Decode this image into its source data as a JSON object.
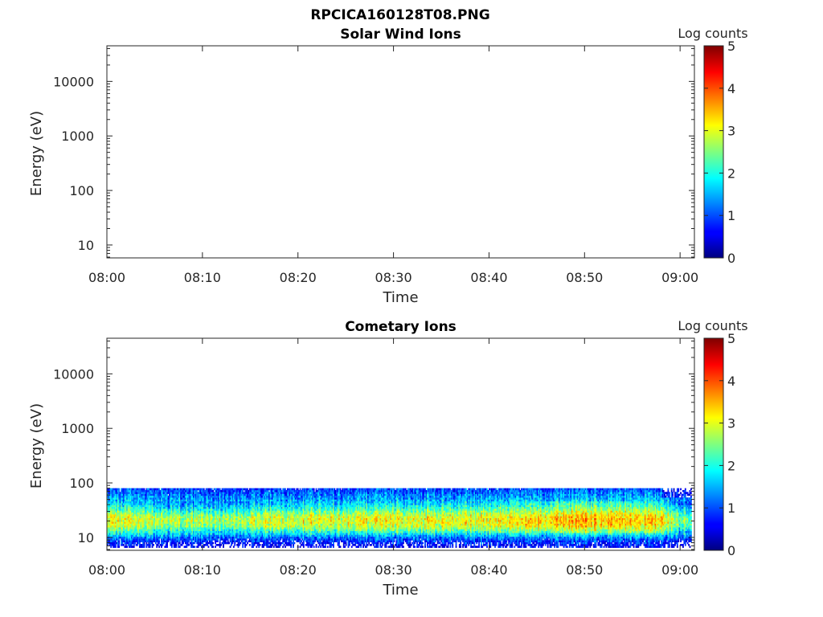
{
  "figure": {
    "title": "RPCICA160128T08.PNG"
  },
  "chart_data": [
    {
      "type": "heatmap",
      "title": "Solar Wind Ions",
      "xlabel": "Time",
      "ylabel": "Energy (eV)",
      "x_ticks": [
        "08:00",
        "08:10",
        "08:20",
        "08:30",
        "08:40",
        "08:50",
        "09:00"
      ],
      "xlim": [
        "08:00",
        "09:01:30"
      ],
      "y_scale": "log",
      "y_ticks": [
        10,
        100,
        1000,
        10000
      ],
      "y_tick_labels": [
        "10",
        "100",
        "1000",
        "10000"
      ],
      "ylim": [
        5.8,
        45000
      ],
      "colorbar": {
        "label": "Log counts",
        "ticks": [
          "0",
          "1",
          "2",
          "3",
          "4",
          "5"
        ],
        "range": [
          0,
          5
        ],
        "colormap": "jet"
      },
      "data": "empty"
    },
    {
      "type": "heatmap",
      "title": "Cometary Ions",
      "xlabel": "Time",
      "ylabel": "Energy (eV)",
      "x_ticks": [
        "08:00",
        "08:10",
        "08:20",
        "08:30",
        "08:40",
        "08:50",
        "09:00"
      ],
      "xlim": [
        "08:00",
        "09:01:30"
      ],
      "y_scale": "log",
      "y_ticks": [
        10,
        100,
        1000,
        10000
      ],
      "y_tick_labels": [
        "10",
        "100",
        "1000",
        "10000"
      ],
      "ylim": [
        5.8,
        45000
      ],
      "colorbar": {
        "label": "Log counts",
        "ticks": [
          "0",
          "1",
          "2",
          "3",
          "4",
          "5"
        ],
        "range": [
          0,
          5
        ],
        "colormap": "jet"
      },
      "energy_range_eV": [
        6.5,
        80
      ],
      "energy_profile": [
        {
          "energy_eV": 7,
          "log_counts": 0.4
        },
        {
          "energy_eV": 9,
          "log_counts": 0.9
        },
        {
          "energy_eV": 11,
          "log_counts": 1.6
        },
        {
          "energy_eV": 13,
          "log_counts": 2.2
        },
        {
          "energy_eV": 16,
          "log_counts": 2.8
        },
        {
          "energy_eV": 19,
          "log_counts": 3.0
        },
        {
          "energy_eV": 23,
          "log_counts": 3.0
        },
        {
          "energy_eV": 28,
          "log_counts": 2.6
        },
        {
          "energy_eV": 34,
          "log_counts": 2.1
        },
        {
          "energy_eV": 42,
          "log_counts": 1.7
        },
        {
          "energy_eV": 52,
          "log_counts": 1.4
        },
        {
          "energy_eV": 64,
          "log_counts": 1.2
        },
        {
          "energy_eV": 78,
          "log_counts": 0.9
        }
      ],
      "time_modulation": [
        {
          "time": "08:00",
          "offset": 0.0
        },
        {
          "time": "08:08",
          "offset": -0.4
        },
        {
          "time": "08:20",
          "offset": 0.0
        },
        {
          "time": "08:40",
          "offset": 0.1
        },
        {
          "time": "08:50",
          "offset": 0.5
        },
        {
          "time": "08:58",
          "offset": 0.3
        },
        {
          "time": "09:00",
          "offset": -0.6
        }
      ]
    }
  ]
}
